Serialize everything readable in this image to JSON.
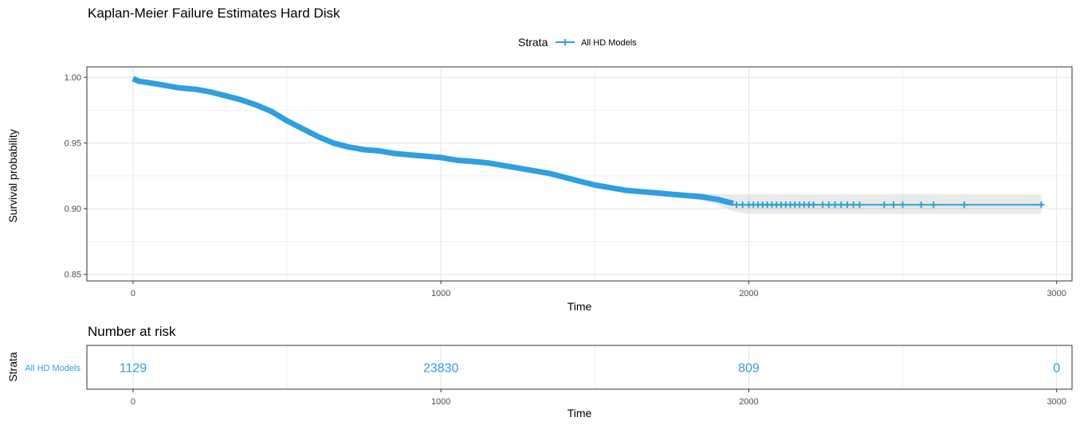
{
  "chart_data": [
    {
      "type": "line",
      "title": "Kaplan-Meier Failure Estimates Hard Disk",
      "xlabel": "Time",
      "ylabel": "Survival probability",
      "legend": {
        "title": "Strata",
        "position": "top",
        "entries": [
          "All HD Models"
        ]
      },
      "xlim": [
        -150,
        3050
      ],
      "ylim": [
        0.845,
        1.008
      ],
      "x_ticks": [
        "0",
        "1000",
        "2000",
        "3000"
      ],
      "x_tick_values": [
        0,
        1000,
        2000,
        3000
      ],
      "y_ticks": [
        "0.85",
        "0.90",
        "0.95",
        "1.00"
      ],
      "y_tick_values": [
        0.85,
        0.9,
        0.95,
        1.0
      ],
      "grid": true,
      "series": [
        {
          "name": "All HD Models",
          "color": "#2E9FDF",
          "x": [
            0,
            10,
            20,
            50,
            100,
            150,
            200,
            250,
            300,
            350,
            400,
            450,
            500,
            550,
            600,
            650,
            700,
            750,
            800,
            850,
            900,
            950,
            1000,
            1050,
            1100,
            1150,
            1200,
            1250,
            1300,
            1350,
            1400,
            1450,
            1500,
            1550,
            1600,
            1650,
            1700,
            1750,
            1800,
            1850,
            1900,
            1950,
            2000,
            2200,
            2400,
            2600,
            2800,
            2950
          ],
          "y": [
            0.999,
            0.998,
            0.997,
            0.996,
            0.994,
            0.992,
            0.991,
            0.989,
            0.986,
            0.983,
            0.979,
            0.974,
            0.967,
            0.961,
            0.955,
            0.95,
            0.947,
            0.945,
            0.944,
            0.942,
            0.941,
            0.94,
            0.939,
            0.937,
            0.936,
            0.935,
            0.933,
            0.931,
            0.929,
            0.927,
            0.924,
            0.921,
            0.918,
            0.916,
            0.914,
            0.913,
            0.912,
            0.911,
            0.91,
            0.909,
            0.907,
            0.904,
            0.903,
            0.903,
            0.903,
            0.903,
            0.903,
            0.903
          ],
          "ci_upper": [
            1.0,
            0.999,
            0.998,
            0.997,
            0.995,
            0.993,
            0.992,
            0.99,
            0.987,
            0.984,
            0.98,
            0.975,
            0.968,
            0.962,
            0.956,
            0.951,
            0.948,
            0.946,
            0.945,
            0.943,
            0.942,
            0.941,
            0.94,
            0.938,
            0.937,
            0.936,
            0.934,
            0.932,
            0.93,
            0.928,
            0.925,
            0.922,
            0.919,
            0.917,
            0.915,
            0.914,
            0.913,
            0.913,
            0.912,
            0.912,
            0.911,
            0.911,
            0.911,
            0.911,
            0.911,
            0.911,
            0.911,
            0.911
          ],
          "ci_lower": [
            0.998,
            0.997,
            0.996,
            0.995,
            0.993,
            0.991,
            0.99,
            0.988,
            0.985,
            0.982,
            0.978,
            0.973,
            0.966,
            0.96,
            0.954,
            0.949,
            0.946,
            0.944,
            0.943,
            0.941,
            0.94,
            0.939,
            0.938,
            0.936,
            0.935,
            0.934,
            0.932,
            0.93,
            0.928,
            0.926,
            0.923,
            0.92,
            0.917,
            0.915,
            0.913,
            0.912,
            0.91,
            0.909,
            0.908,
            0.906,
            0.903,
            0.898,
            0.896,
            0.896,
            0.896,
            0.896,
            0.896,
            0.896
          ],
          "censor_x": [
            1960,
            1980,
            2000,
            2015,
            2030,
            2045,
            2060,
            2075,
            2090,
            2105,
            2120,
            2135,
            2150,
            2165,
            2180,
            2195,
            2210,
            2240,
            2260,
            2280,
            2300,
            2320,
            2340,
            2360,
            2440,
            2470,
            2500,
            2560,
            2600,
            2700,
            2950
          ],
          "censor_y": 0.903
        }
      ]
    },
    {
      "type": "table",
      "title": "Number at risk",
      "xlabel": "Time",
      "ylabel": "Strata",
      "strata": [
        "All HD Models"
      ],
      "x_ticks": [
        "0",
        "1000",
        "2000",
        "3000"
      ],
      "x_tick_values": [
        0,
        1000,
        2000,
        3000
      ],
      "values": [
        "1129",
        "23830",
        "809",
        "0"
      ],
      "color": "#2E9FDF"
    }
  ]
}
